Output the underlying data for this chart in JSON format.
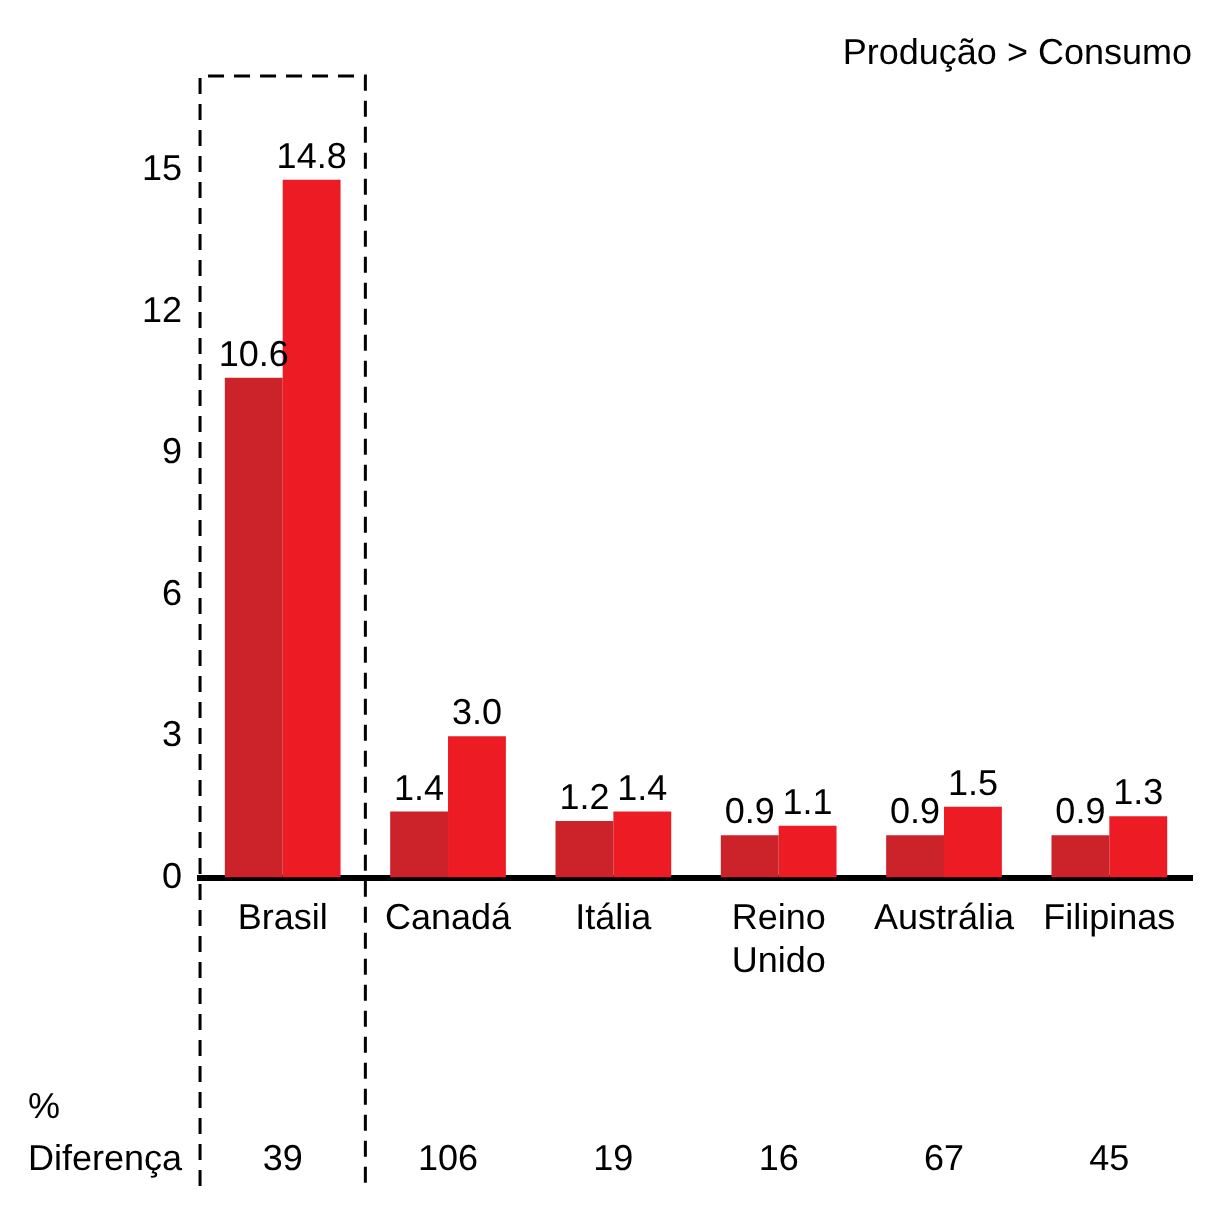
{
  "chart_data": {
    "type": "bar",
    "categories": [
      "Brasil",
      "Canadá",
      "Itália",
      "Reino Unido",
      "Austrália",
      "Filipinas"
    ],
    "series": [
      {
        "color": "#cc2229",
        "values": [
          10.6,
          1.4,
          1.2,
          0.9,
          0.9,
          0.9
        ],
        "value_labels": [
          "10.6",
          "1.4",
          "1.2",
          "0.9",
          "0.9",
          "0.9"
        ]
      },
      {
        "color": "#ed1c24",
        "values": [
          14.8,
          3.0,
          1.4,
          1.1,
          1.5,
          1.3
        ],
        "value_labels": [
          "14.8",
          "3.0",
          "1.4",
          "1.1",
          "1.5",
          "1.3"
        ]
      }
    ],
    "ylim": [
      0,
      17
    ],
    "yticks": [
      0,
      3,
      6,
      9,
      12,
      15
    ],
    "grid": false,
    "legend": false,
    "annotations": [
      "Produção > Consumo",
      "% Diferença",
      "39",
      "106",
      "19",
      "16",
      "67",
      "45"
    ]
  }
}
